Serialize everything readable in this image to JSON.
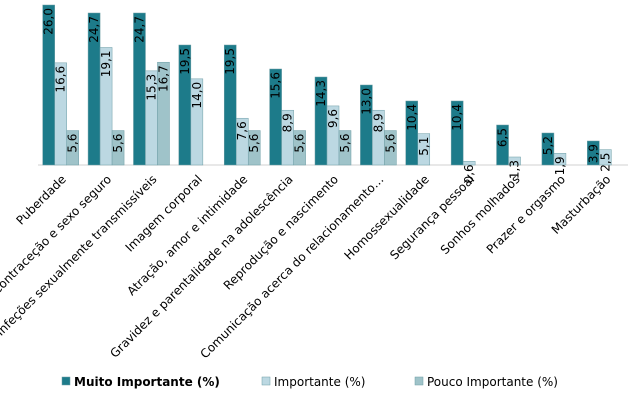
{
  "chart_data": {
    "type": "bar",
    "categories": [
      "Puberdade",
      "Contraceção e sexo seguro",
      "Infeções sexualmente transmissíveis",
      "Imagem corporal",
      "Atração, amor e intimidade",
      "Gravidez e parentalidade na adolescência",
      "Reprodução e nascimento",
      "Comunicação acerca do relacionamento…",
      "Homossexualidade",
      "Segurança pessoal",
      "Sonhos molhados",
      "Prazer e orgasmo",
      "Masturbação"
    ],
    "series": [
      {
        "name": "Muito Importante (%)",
        "color": "#1d7b8a",
        "values": [
          26.0,
          24.7,
          24.7,
          19.5,
          19.5,
          15.6,
          14.3,
          13.0,
          10.4,
          10.4,
          6.5,
          5.2,
          3.9
        ],
        "value_labels": [
          "26,0",
          "24,7",
          "24,7",
          "19,5",
          "19,5",
          "15,6",
          "14,3",
          "13,0",
          "10,4",
          "10,4",
          "6,5",
          "5,2",
          "3,9"
        ]
      },
      {
        "name": "Importante (%)",
        "color": "#bcd8e2",
        "values": [
          16.6,
          19.1,
          15.3,
          14.0,
          7.6,
          8.9,
          9.6,
          8.9,
          5.1,
          0.6,
          1.3,
          1.9,
          2.5
        ],
        "value_labels": [
          "16,6",
          "19,1",
          "15,3",
          "14,0",
          "7,6",
          "8,9",
          "9,6",
          "8,9",
          "5,1",
          "0,6",
          "1,3",
          "1,9",
          "2,5"
        ]
      },
      {
        "name": "Pouco Importante (%)",
        "color": "#9fc3c9",
        "values": [
          5.6,
          5.6,
          16.7,
          null,
          5.6,
          5.6,
          5.6,
          5.6,
          null,
          null,
          null,
          null,
          null
        ],
        "value_labels": [
          "5,6",
          "5,6",
          "16,7",
          null,
          "5,6",
          "5,6",
          "5,6",
          "5,6",
          null,
          null,
          null,
          null,
          null
        ]
      }
    ],
    "ylim": [
      0,
      26
    ]
  }
}
